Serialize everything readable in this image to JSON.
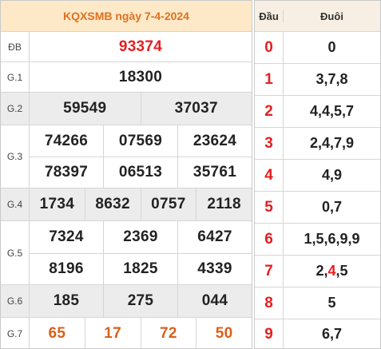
{
  "title": "KQXSMB ngày 7-4-2024",
  "prizes": {
    "db": {
      "label": "ĐB",
      "values": [
        "93374"
      ]
    },
    "g1": {
      "label": "G.1",
      "values": [
        "18300"
      ]
    },
    "g2": {
      "label": "G.2",
      "values": [
        "59549",
        "37037"
      ]
    },
    "g3": {
      "label": "G.3",
      "values": [
        "74266",
        "07569",
        "23624",
        "78397",
        "06513",
        "35761"
      ]
    },
    "g4": {
      "label": "G.4",
      "values": [
        "1734",
        "8632",
        "0757",
        "2118"
      ]
    },
    "g5": {
      "label": "G.5",
      "values": [
        "7324",
        "2369",
        "6427",
        "8196",
        "1825",
        "4339"
      ]
    },
    "g6": {
      "label": "G.6",
      "values": [
        "185",
        "275",
        "044"
      ]
    },
    "g7": {
      "label": "G.7",
      "values": [
        "65",
        "17",
        "72",
        "50"
      ]
    }
  },
  "loto": {
    "header_dau": "Đầu",
    "header_duoi": "Đuôi",
    "rows": [
      {
        "dau": "0",
        "duoi": "0"
      },
      {
        "dau": "1",
        "duoi": "3,7,8"
      },
      {
        "dau": "2",
        "duoi": "4,4,5,7"
      },
      {
        "dau": "3",
        "duoi": "2,4,7,9"
      },
      {
        "dau": "4",
        "duoi": "4,9"
      },
      {
        "dau": "5",
        "duoi": "0,7"
      },
      {
        "dau": "6",
        "duoi": "1,5,6,9,9"
      },
      {
        "dau": "7",
        "duoi_parts": [
          "2,",
          "4",
          ",5"
        ]
      },
      {
        "dau": "8",
        "duoi": "5"
      },
      {
        "dau": "9",
        "duoi": "6,7"
      }
    ]
  },
  "colors": {
    "header_bg": "#fde9c8",
    "title_color": "#e0701f",
    "special_prize_color": "#e51f1f",
    "g7_color": "#d9601a",
    "shaded_row": "#ececec"
  }
}
